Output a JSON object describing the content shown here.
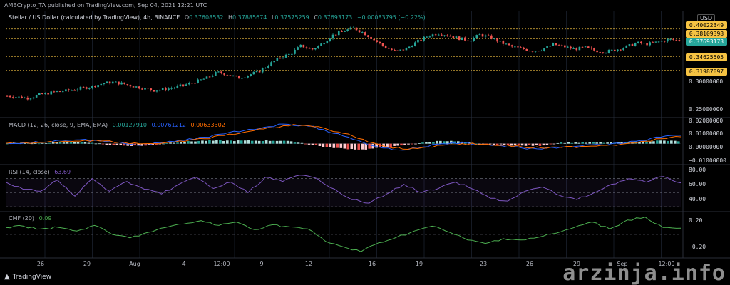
{
  "header": {
    "published": "AMBCrypto_TA published on TradingView.com, Sep 04, 2021 12:21 UTC"
  },
  "main_legend": {
    "symbol": "Stellar / US Dollar (calculated by TradingView), 4h, BINANCE",
    "o_label": "O",
    "o_val": "0.37608532",
    "h_label": "H",
    "h_val": "0.37885674",
    "l_label": "L",
    "l_val": "0.37575259",
    "c_label": "C",
    "c_val": "0.37693173",
    "change": "−0.00083795 (−0.22%)"
  },
  "currency": "USD",
  "price_levels": [
    {
      "value": "0.40022349",
      "style": "yellow"
    },
    {
      "value": "0.38109398",
      "style": "yellow"
    },
    {
      "value": "0.37693173",
      "style": "green"
    },
    {
      "value": "0.34625505",
      "style": "yellow"
    },
    {
      "value": "0.31987097",
      "style": "yellow"
    }
  ],
  "price_axis": [
    "0.30000000",
    "0.25000000"
  ],
  "macd": {
    "label": "MACD (12, 26, close, 9, EMA, EMA)",
    "hist": "0.00127910",
    "macd": "0.00761212",
    "signal": "0.00633302",
    "axis": [
      "0.02000000",
      "0.01000000",
      "0.00000000",
      "−0.01000000"
    ]
  },
  "rsi": {
    "label": "RSI (14, close)",
    "value": "63.69",
    "axis": [
      "80.00",
      "60.00",
      "40.00"
    ]
  },
  "cmf": {
    "label": "CMF (20)",
    "value": "0.09",
    "axis": [
      "0.20",
      "−0.20"
    ]
  },
  "x_ticks": [
    "26",
    "29",
    "Aug",
    "4",
    "12:00",
    "9",
    "12",
    "16",
    "19",
    "23",
    "26",
    "29",
    "Sep",
    "12:00"
  ],
  "footer": {
    "brand": "TradingView",
    "watermark": "arzinja.info"
  },
  "colors": {
    "up": "#26a69a",
    "down": "#ef5350",
    "level": "#f6c343",
    "macd": "#2962ff",
    "signal": "#ff6d00",
    "rsi": "#7e57c2",
    "cmf": "#4caf50"
  },
  "chart_data": {
    "type": "candlestick",
    "title": "Stellar / US Dollar (calculated by TradingView), 4h, BINANCE",
    "ylim": [
      0.235,
      0.415
    ],
    "x_tick_labels": [
      "26",
      "29",
      "Aug",
      "4",
      "12:00",
      "9",
      "12",
      "16",
      "19",
      "23",
      "26",
      "29",
      "Sep",
      "12:00"
    ],
    "close_path": [
      0.27,
      0.268,
      0.266,
      0.272,
      0.276,
      0.279,
      0.281,
      0.285,
      0.288,
      0.294,
      0.297,
      0.294,
      0.289,
      0.285,
      0.281,
      0.283,
      0.287,
      0.292,
      0.298,
      0.305,
      0.316,
      0.312,
      0.305,
      0.311,
      0.318,
      0.332,
      0.345,
      0.352,
      0.368,
      0.36,
      0.372,
      0.388,
      0.396,
      0.402,
      0.392,
      0.378,
      0.365,
      0.356,
      0.362,
      0.375,
      0.386,
      0.392,
      0.388,
      0.382,
      0.378,
      0.389,
      0.384,
      0.374,
      0.366,
      0.362,
      0.358,
      0.361,
      0.37,
      0.366,
      0.361,
      0.364,
      0.358,
      0.356,
      0.36,
      0.366,
      0.373,
      0.371,
      0.375,
      0.38,
      0.378
    ],
    "levels": [
      0.40022349,
      0.38109398,
      0.37693173,
      0.34625505,
      0.31987097
    ],
    "series": [
      {
        "name": "MACD",
        "values": [
          0.0005,
          0.001,
          0.0015,
          0.003,
          0.004,
          0.002,
          0.0,
          -0.001,
          0.001,
          0.003,
          0.006,
          0.009,
          0.012,
          0.015,
          0.018,
          0.017,
          0.013,
          0.007,
          0.001,
          -0.004,
          -0.006,
          -0.003,
          0.0,
          0.001,
          -0.001,
          -0.002,
          -0.004,
          -0.005,
          -0.003,
          -0.002,
          -0.001,
          0.0,
          0.003,
          0.006,
          0.0076
        ]
      },
      {
        "name": "Signal",
        "values": [
          0.0003,
          0.0008,
          0.0012,
          0.0022,
          0.0032,
          0.0025,
          0.001,
          0.0,
          0.0008,
          0.002,
          0.0045,
          0.0075,
          0.0105,
          0.0135,
          0.0165,
          0.0168,
          0.0145,
          0.0095,
          0.004,
          -0.002,
          -0.005,
          -0.0035,
          -0.0015,
          0.0,
          -0.0005,
          -0.0015,
          -0.003,
          -0.004,
          -0.0035,
          -0.0025,
          -0.0015,
          -0.0005,
          0.002,
          0.0045,
          0.0063
        ]
      },
      {
        "name": "RSI",
        "values": [
          65,
          55,
          52,
          68,
          45,
          70,
          52,
          66,
          55,
          48,
          62,
          72,
          56,
          65,
          50,
          72,
          66,
          75,
          70,
          55,
          40,
          35,
          48,
          62,
          50,
          56,
          65,
          55,
          42,
          38,
          52,
          58,
          46,
          40,
          50,
          62,
          70,
          65,
          73,
          64
        ]
      },
      {
        "name": "CMF",
        "values": [
          0.1,
          0.12,
          0.08,
          0.1,
          0.05,
          0.13,
          0.0,
          -0.05,
          0.03,
          0.1,
          0.15,
          0.2,
          0.13,
          0.18,
          0.07,
          0.14,
          0.11,
          0.08,
          -0.1,
          -0.18,
          -0.25,
          -0.12,
          -0.04,
          0.05,
          0.12,
          0.03,
          -0.08,
          -0.13,
          -0.06,
          -0.08,
          -0.04,
          0.02,
          0.1,
          0.18,
          0.08,
          0.21,
          0.25,
          0.1,
          0.09
        ]
      }
    ]
  }
}
